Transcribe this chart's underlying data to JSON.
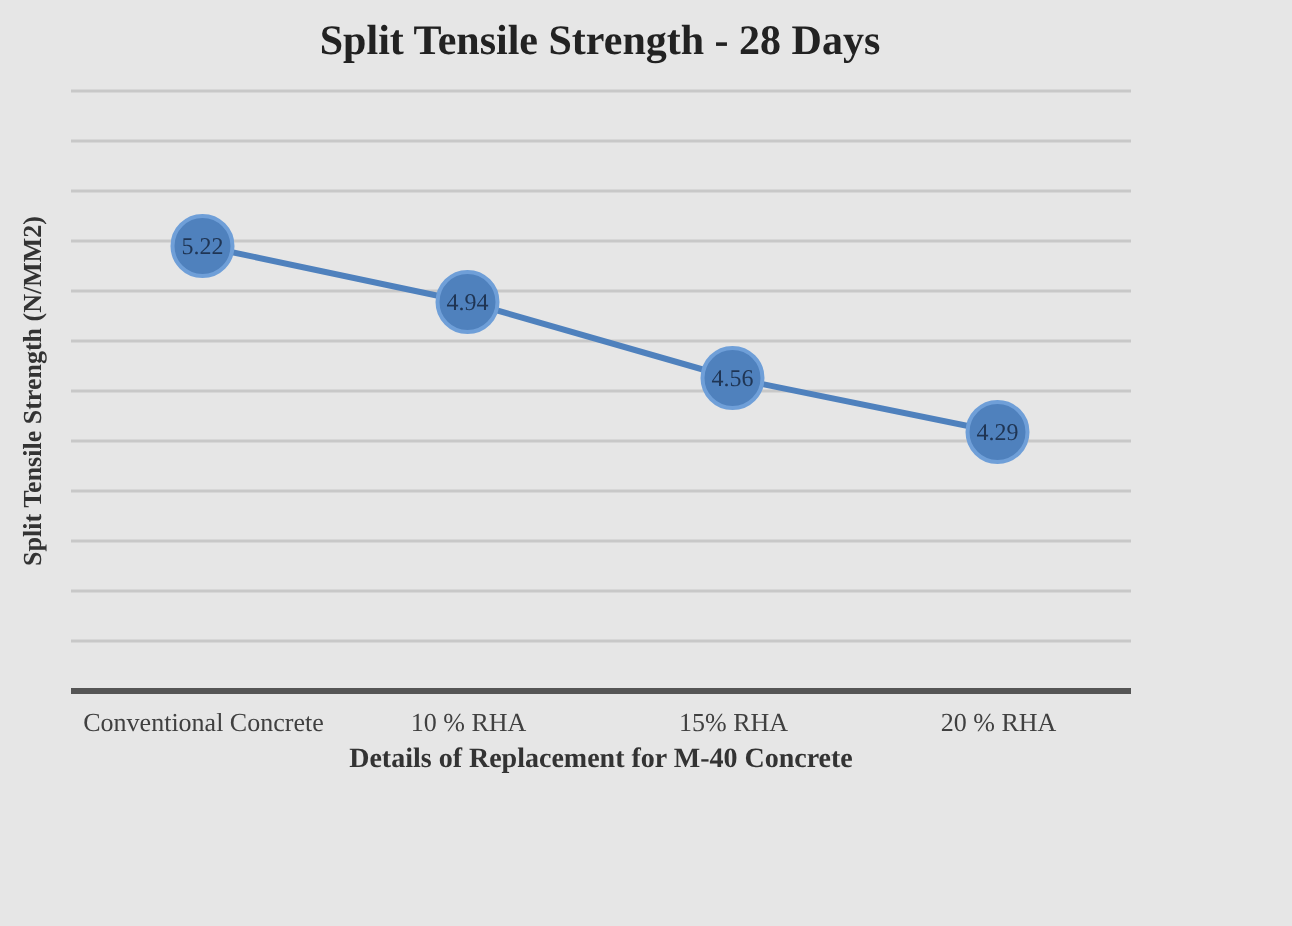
{
  "chart_data": {
    "type": "line",
    "title": "Split Tensile Strength - 28 Days",
    "xlabel": "Details of Replacement for M-40 Concrete",
    "ylabel": "Split Tensile Strength (N/MM2)",
    "categories": [
      "Conventional Concrete",
      "10 % RHA",
      "15% RHA",
      "20 % RHA"
    ],
    "series": [
      {
        "color": "#4f81bd",
        "values": [
          5.22,
          4.94,
          4.56,
          4.29
        ]
      }
    ],
    "ylim": [
      3,
      6
    ],
    "yticks": [
      {
        "value": 3,
        "label": null
      },
      {
        "value": 3.25,
        "label": null
      },
      {
        "value": 3.5,
        "label": null
      },
      {
        "value": 3.75,
        "label": null
      },
      {
        "value": 4,
        "label": null
      },
      {
        "value": 4.25,
        "label": null
      },
      {
        "value": 4.5,
        "label": null
      },
      {
        "value": 4.75,
        "label": null
      },
      {
        "value": 5,
        "label": null
      },
      {
        "value": 5.25,
        "label": null
      },
      {
        "value": 5.5,
        "label": null
      },
      {
        "value": 5.75,
        "label": null
      },
      {
        "value": 6,
        "label": null
      }
    ],
    "grid": "y",
    "tick_labels": "x",
    "marker": "circle",
    "data_labels": true
  }
}
